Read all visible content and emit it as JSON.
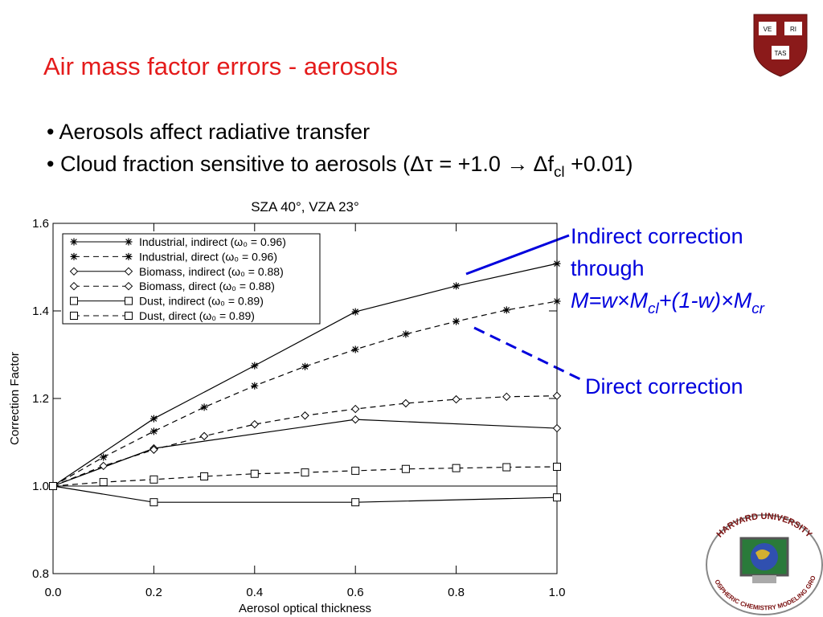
{
  "header": {
    "title": "Air mass factor errors - aerosols"
  },
  "bullets": [
    {
      "parts": [
        {
          "text": "• Aerosols affect radiative transfer"
        }
      ]
    },
    {
      "parts": [
        {
          "text": "• Cloud fraction sensitive to aerosols (Δτ = +1.0 → Δf"
        },
        {
          "text": "cl",
          "sub": true
        },
        {
          "text": " +0.01)"
        }
      ]
    }
  ],
  "chart_data": {
    "type": "line",
    "title": "SZA 40°, VZA 23°",
    "x_label": "Aerosol optical thickness",
    "y_label": "Correction Factor",
    "xlim": [
      0,
      1
    ],
    "ylim": [
      0.8,
      1.6
    ],
    "xticks": [
      {
        "value": 0,
        "label": "0.0"
      },
      0.2,
      0.4,
      0.6,
      0.8,
      {
        "value": 1,
        "label": "1.0"
      }
    ],
    "yticks": [
      0.8,
      {
        "value": 1,
        "label": "1.0"
      },
      1.2,
      1.4,
      1.6
    ],
    "hlines": [
      1
    ],
    "legend": "upper left",
    "series": [
      {
        "name": "Industrial, indirect (ω₀ = 0.96)",
        "color": "#000000",
        "linestyle": "solid",
        "marker": "asterisk",
        "x": [
          0,
          0.2,
          0.4,
          0.6,
          0.8,
          1
        ],
        "values": [
          1,
          1.154,
          1.275,
          1.398,
          1.457,
          1.508
        ]
      },
      {
        "name": "Industrial, direct (ω₀ = 0.96)",
        "color": "#000000",
        "linestyle": "dashed",
        "marker": "asterisk",
        "x": [
          0,
          0.1,
          0.2,
          0.3,
          0.4,
          0.5,
          0.6,
          0.7,
          0.8,
          0.9,
          1
        ],
        "values": [
          1,
          1.066,
          1.125,
          1.18,
          1.229,
          1.273,
          1.312,
          1.347,
          1.376,
          1.402,
          1.422
        ]
      },
      {
        "name": "Biomass, indirect (ω₀ = 0.88)",
        "color": "#000000",
        "linestyle": "solid",
        "marker": "diamond",
        "x": [
          0,
          0.2,
          0.6,
          1
        ],
        "values": [
          1,
          1.086,
          1.152,
          1.132
        ]
      },
      {
        "name": "Biomass, direct (ω₀ = 0.88)",
        "color": "#000000",
        "linestyle": "dashed",
        "marker": "diamond",
        "x": [
          0,
          0.1,
          0.2,
          0.3,
          0.4,
          0.5,
          0.6,
          0.7,
          0.8,
          0.9,
          1
        ],
        "values": [
          1,
          1.046,
          1.083,
          1.114,
          1.141,
          1.161,
          1.176,
          1.189,
          1.198,
          1.204,
          1.206
        ]
      },
      {
        "name": "Dust, indirect (ω₀ = 0.89)",
        "color": "#000000",
        "linestyle": "solid",
        "marker": "square",
        "x": [
          0,
          0.2,
          0.6,
          1
        ],
        "values": [
          1,
          0.963,
          0.963,
          0.974
        ]
      },
      {
        "name": "Dust, direct (ω₀ = 0.89)",
        "color": "#000000",
        "linestyle": "dashed",
        "marker": "square",
        "x": [
          0,
          0.1,
          0.2,
          0.3,
          0.4,
          0.5,
          0.6,
          0.7,
          0.8,
          0.9,
          1
        ],
        "values": [
          1,
          1.009,
          1.015,
          1.022,
          1.028,
          1.031,
          1.035,
          1.039,
          1.041,
          1.043,
          1.044
        ]
      }
    ]
  },
  "annotations": [
    {
      "color": "#0000dd",
      "lines": [
        {
          "parts": [
            {
              "text": "Indirect correction"
            }
          ]
        },
        {
          "parts": [
            {
              "text": "through"
            }
          ]
        },
        {
          "italic": true,
          "parts": [
            {
              "text": "M=w×M"
            },
            {
              "text": "cl",
              "sub": true
            },
            {
              "text": "+(1-w)×M"
            },
            {
              "text": "cr",
              "sub": true
            }
          ]
        }
      ]
    },
    {
      "color": "#0000dd",
      "lines": [
        {
          "parts": [
            {
              "text": "Direct correction"
            }
          ]
        }
      ]
    }
  ],
  "logos": {
    "shield": [
      "VE",
      "RI",
      "TAS"
    ],
    "group": {
      "top": "Harvard University",
      "bottom": "Atmospheric Chemistry Modeling Group"
    }
  }
}
